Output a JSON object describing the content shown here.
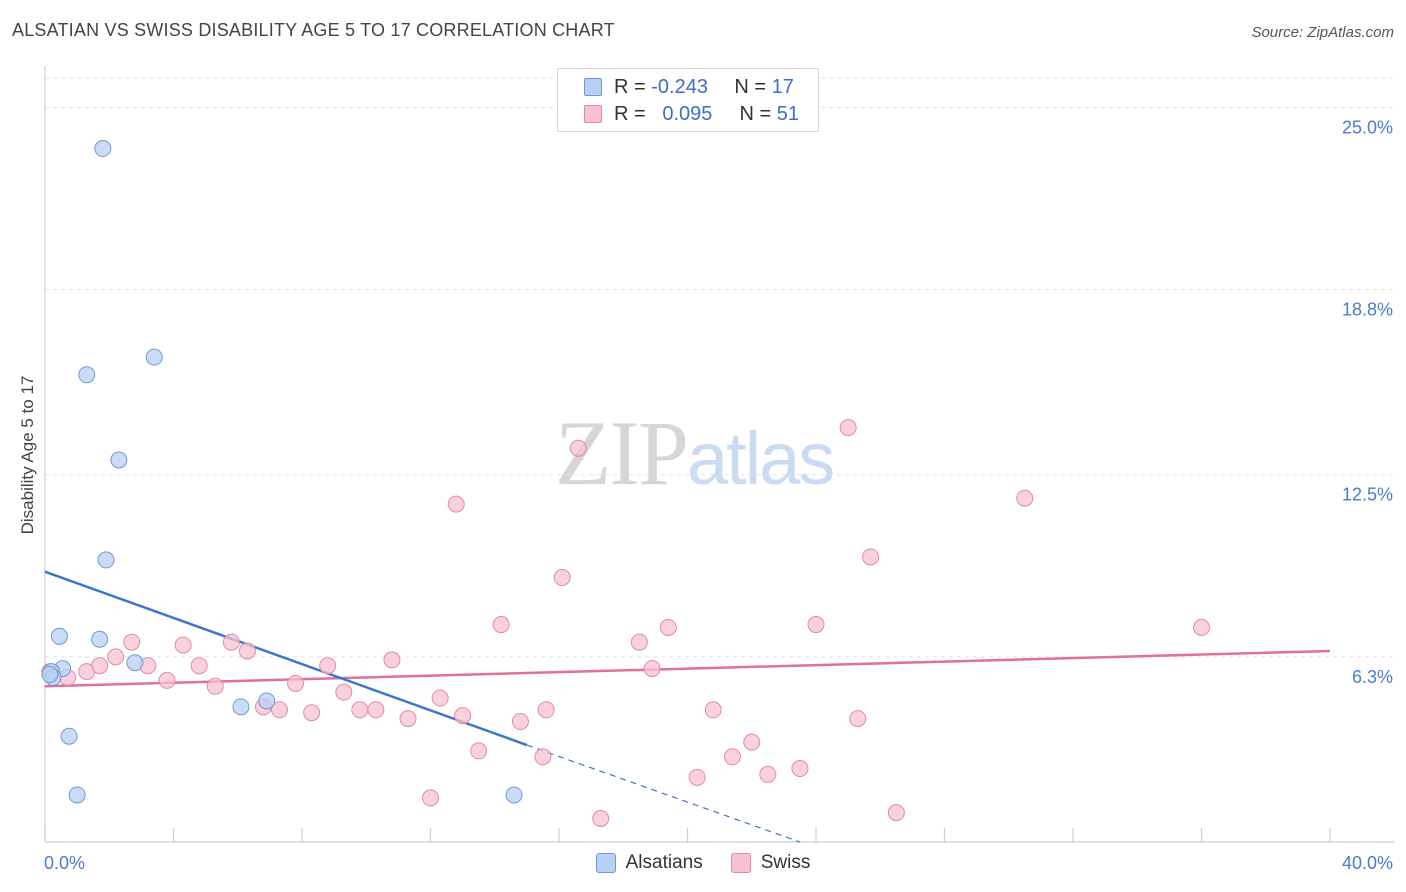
{
  "title": "ALSATIAN VS SWISS DISABILITY AGE 5 TO 17 CORRELATION CHART",
  "source": "Source: ZipAtlas.com",
  "watermark": {
    "zip": "ZIP",
    "atlas": "atlas"
  },
  "legend": {
    "rows": [
      {
        "r_label": "R =",
        "r_value": "-0.243",
        "n_label": "N =",
        "n_value": "17"
      },
      {
        "r_label": "R =",
        "r_value": "0.095",
        "n_label": "N =",
        "n_value": "51"
      }
    ]
  },
  "bottom_legend": [
    "Alsatians",
    "Swiss"
  ],
  "chart_data": {
    "type": "scatter",
    "title": "ALSATIAN VS SWISS DISABILITY AGE 5 TO 17 CORRELATION CHART",
    "xlabel": "",
    "ylabel": "Disability Age 5 to 17",
    "xlim": [
      0,
      40
    ],
    "ylim": [
      0,
      26
    ],
    "x_tick_labels": [
      "0.0%",
      "40.0%"
    ],
    "y_ticks": [
      6.3,
      12.5,
      18.8,
      25.0
    ],
    "y_tick_labels": [
      "6.3%",
      "12.5%",
      "18.8%",
      "25.0%"
    ],
    "colors": {
      "alsatians_fill": "#b8d0f2",
      "alsatians_stroke": "#6f9ad6",
      "alsatians_line": "#3a76d1",
      "swiss_fill": "#f7c1d2",
      "swiss_stroke": "#e28aa8",
      "swiss_line": "#e0709a",
      "tick": "#4a7cc9",
      "grid": "#e2e2e2"
    },
    "series": [
      {
        "name": "Alsatians",
        "R": -0.243,
        "N": 17,
        "points": [
          [
            1.8,
            23.6
          ],
          [
            3.4,
            16.5
          ],
          [
            1.3,
            15.9
          ],
          [
            2.3,
            13.0
          ],
          [
            1.9,
            9.6
          ],
          [
            0.45,
            7.0
          ],
          [
            1.7,
            6.9
          ],
          [
            2.8,
            6.1
          ],
          [
            0.55,
            5.9
          ],
          [
            0.2,
            5.8
          ],
          [
            0.25,
            5.6
          ],
          [
            6.9,
            4.8
          ],
          [
            6.1,
            4.6
          ],
          [
            0.75,
            3.6
          ],
          [
            1.0,
            1.6
          ],
          [
            14.6,
            1.6
          ],
          [
            0.15,
            5.7
          ]
        ],
        "trend": {
          "x0": 0,
          "y0": 9.2,
          "x1": 15.0,
          "y1": 3.3,
          "dash_x1": 23.5,
          "dash_y1": 0
        }
      },
      {
        "name": "Swiss",
        "R": 0.095,
        "N": 51,
        "points": [
          [
            0.15,
            5.8
          ],
          [
            0.7,
            5.6
          ],
          [
            1.3,
            5.8
          ],
          [
            1.7,
            6.0
          ],
          [
            2.2,
            6.3
          ],
          [
            2.7,
            6.8
          ],
          [
            3.2,
            6.0
          ],
          [
            3.8,
            5.5
          ],
          [
            4.3,
            6.7
          ],
          [
            4.8,
            6.0
          ],
          [
            5.3,
            5.3
          ],
          [
            5.8,
            6.8
          ],
          [
            6.3,
            6.5
          ],
          [
            6.8,
            4.6
          ],
          [
            7.3,
            4.5
          ],
          [
            7.8,
            5.4
          ],
          [
            8.3,
            4.4
          ],
          [
            8.8,
            6.0
          ],
          [
            9.3,
            5.1
          ],
          [
            9.8,
            4.5
          ],
          [
            10.3,
            4.5
          ],
          [
            10.8,
            6.2
          ],
          [
            11.3,
            4.2
          ],
          [
            12.3,
            4.9
          ],
          [
            12.8,
            11.5
          ],
          [
            13.0,
            4.3
          ],
          [
            13.5,
            3.1
          ],
          [
            14.2,
            7.4
          ],
          [
            14.8,
            4.1
          ],
          [
            15.6,
            4.5
          ],
          [
            16.1,
            9.0
          ],
          [
            16.6,
            13.4
          ],
          [
            17.3,
            0.8
          ],
          [
            18.5,
            6.8
          ],
          [
            18.9,
            5.9
          ],
          [
            19.4,
            7.3
          ],
          [
            20.3,
            2.2
          ],
          [
            20.8,
            4.5
          ],
          [
            21.4,
            2.9
          ],
          [
            22.0,
            3.4
          ],
          [
            22.5,
            2.3
          ],
          [
            23.5,
            2.5
          ],
          [
            24.0,
            7.4
          ],
          [
            25.3,
            4.2
          ],
          [
            25.0,
            14.1
          ],
          [
            25.7,
            9.7
          ],
          [
            26.5,
            1.0
          ],
          [
            30.5,
            11.7
          ],
          [
            36.0,
            7.3
          ],
          [
            12.0,
            1.5
          ],
          [
            15.5,
            2.9
          ]
        ],
        "trend": {
          "x0": 0,
          "y0": 5.3,
          "x1": 40,
          "y1": 6.5
        }
      }
    ]
  }
}
